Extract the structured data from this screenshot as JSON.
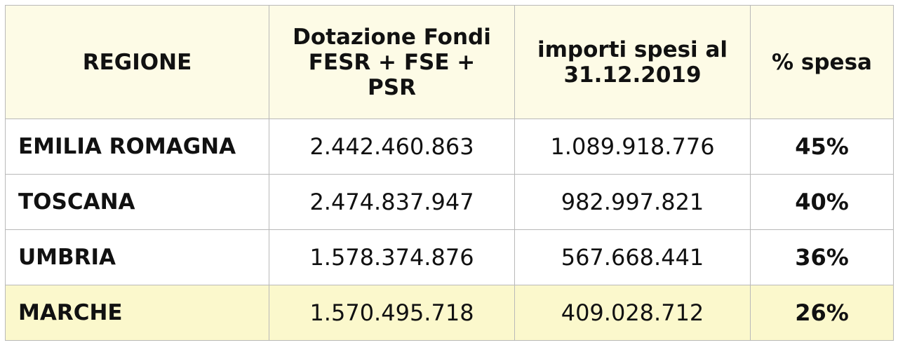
{
  "chart_data": {
    "type": "table",
    "columns": [
      "REGIONE",
      "Dotazione Fondi FESR + FSE + PSR",
      "importi spesi al 31.12.2019",
      "% spesa"
    ],
    "rows": [
      {
        "region": "EMILIA ROMAGNA",
        "dotazione": "2.442.460.863",
        "importi": "1.089.918.776",
        "perc": "45%"
      },
      {
        "region": "TOSCANA",
        "dotazione": "2.474.837.947",
        "importi": "982.997.821",
        "perc": "40%"
      },
      {
        "region": "UMBRIA",
        "dotazione": "1.578.374.876",
        "importi": "567.668.441",
        "perc": "36%"
      },
      {
        "region": "MARCHE",
        "dotazione": "1.570.495.718",
        "importi": "409.028.712",
        "perc": "26%"
      }
    ],
    "highlighted_row": "MARCHE",
    "colors": {
      "header_bg": "#fdfbe6",
      "highlight_bg": "#fbf8cc",
      "border": "#b9b9b9"
    }
  }
}
